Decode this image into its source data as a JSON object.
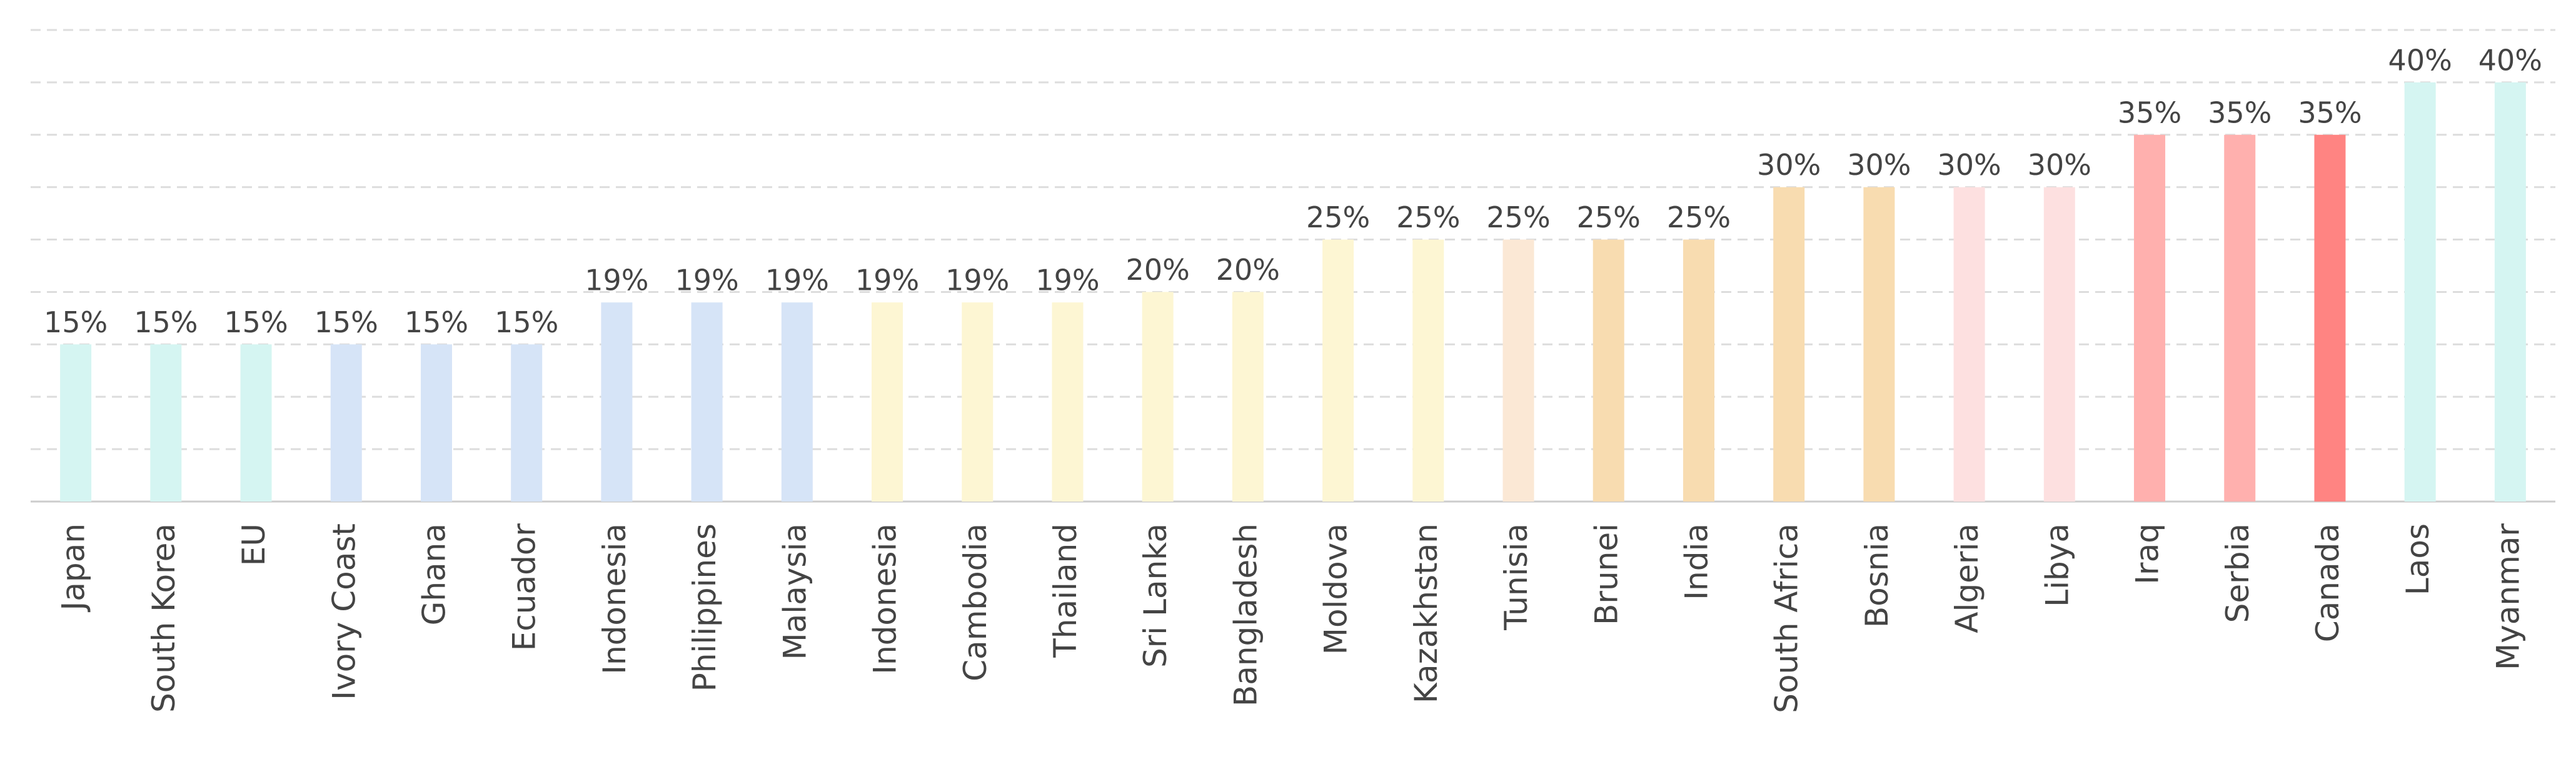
{
  "chart_data": {
    "type": "bar",
    "categories": [
      "Japan",
      "South Korea",
      "EU",
      "Ivory Coast",
      "Ghana",
      "Ecuador",
      "Indonesia",
      "Philippines",
      "Malaysia",
      "Indonesia",
      "Cambodia",
      "Thailand",
      "Sri Lanka",
      "Bangladesh",
      "Moldova",
      "Kazakhstan",
      "Tunisia",
      "Brunei",
      "India",
      "South Africa",
      "Bosnia",
      "Algeria",
      "Libya",
      "Iraq",
      "Serbia",
      "Canada",
      "Laos",
      "Myanmar"
    ],
    "values": [
      15,
      15,
      15,
      15,
      15,
      15,
      19,
      19,
      19,
      19,
      19,
      19,
      20,
      20,
      25,
      25,
      25,
      25,
      25,
      30,
      30,
      30,
      30,
      35,
      35,
      35,
      40,
      40
    ],
    "value_labels": [
      "15%",
      "15%",
      "15%",
      "15%",
      "15%",
      "15%",
      "19%",
      "19%",
      "19%",
      "19%",
      "19%",
      "19%",
      "20%",
      "20%",
      "25%",
      "25%",
      "25%",
      "25%",
      "25%",
      "30%",
      "30%",
      "30%",
      "30%",
      "35%",
      "35%",
      "35%",
      "40%",
      "40%"
    ],
    "colors": [
      "#d5f5f2",
      "#d5f5f2",
      "#d5f5f2",
      "#d6e4f7",
      "#d6e4f7",
      "#d6e4f7",
      "#d6e4f7",
      "#d6e4f7",
      "#d6e4f7",
      "#fdf6d3",
      "#fdf6d3",
      "#fdf6d3",
      "#fdf6d3",
      "#fdf6d3",
      "#fdf6d3",
      "#fdf6d3",
      "#fbe8d5",
      "#f8dcb0",
      "#f8dcb0",
      "#f8dcb0",
      "#f8dcb0",
      "#fde0e0",
      "#fde0e0",
      "#ffb0ae",
      "#ffb0ae",
      "#ff8482",
      "#d5f5f2",
      "#d5f5f2"
    ],
    "ylim": [
      0,
      45
    ],
    "yticks": [
      0,
      5,
      10,
      15,
      20,
      25,
      30,
      35,
      40,
      45
    ],
    "grid": true
  }
}
